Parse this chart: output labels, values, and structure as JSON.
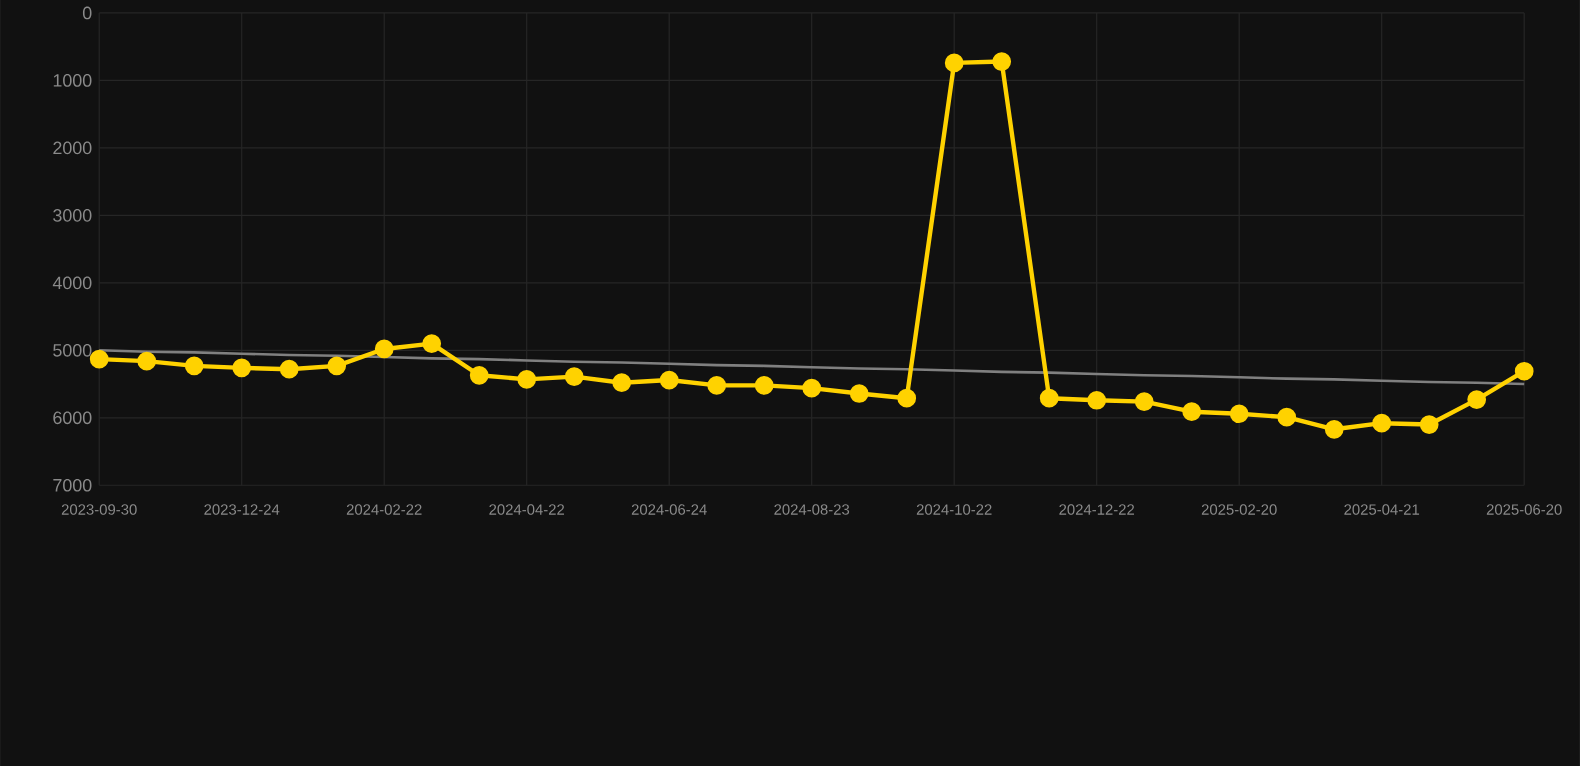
{
  "chart_data": {
    "type": "line",
    "categories": [
      "2023-09-30",
      null,
      null,
      "2023-12-24",
      null,
      null,
      "2024-02-22",
      null,
      null,
      "2024-04-22",
      null,
      null,
      "2024-06-24",
      null,
      null,
      "2024-08-23",
      null,
      null,
      "2024-10-22",
      null,
      null,
      "2024-12-22",
      null,
      null,
      "2025-02-20",
      null,
      null,
      "2025-04-21",
      null,
      null,
      "2025-06-20"
    ],
    "series": [
      {
        "color": "#ffd200",
        "marker": "circle",
        "values": [
          5130,
          5160,
          5230,
          5260,
          5280,
          5230,
          4980,
          4900,
          5370,
          5430,
          5390,
          5480,
          5440,
          5520,
          5520,
          5560,
          5640,
          5710,
          740,
          720,
          5710,
          5740,
          5760,
          5910,
          5940,
          5990,
          6170,
          6080,
          6100,
          5730,
          5310
        ]
      },
      {
        "color": "#808080",
        "marker": "none",
        "values": [
          5000,
          5020,
          5030,
          5050,
          5070,
          5080,
          5100,
          5120,
          5130,
          5150,
          5170,
          5180,
          5200,
          5220,
          5230,
          5250,
          5270,
          5280,
          5300,
          5320,
          5330,
          5350,
          5370,
          5380,
          5400,
          5420,
          5430,
          5450,
          5470,
          5480,
          5500
        ]
      }
    ],
    "ylim": [
      7000,
      0
    ],
    "yticks": [
      0,
      1000,
      2000,
      3000,
      4000,
      5000,
      6000,
      7000
    ],
    "grid": true,
    "line_style": "solid"
  }
}
